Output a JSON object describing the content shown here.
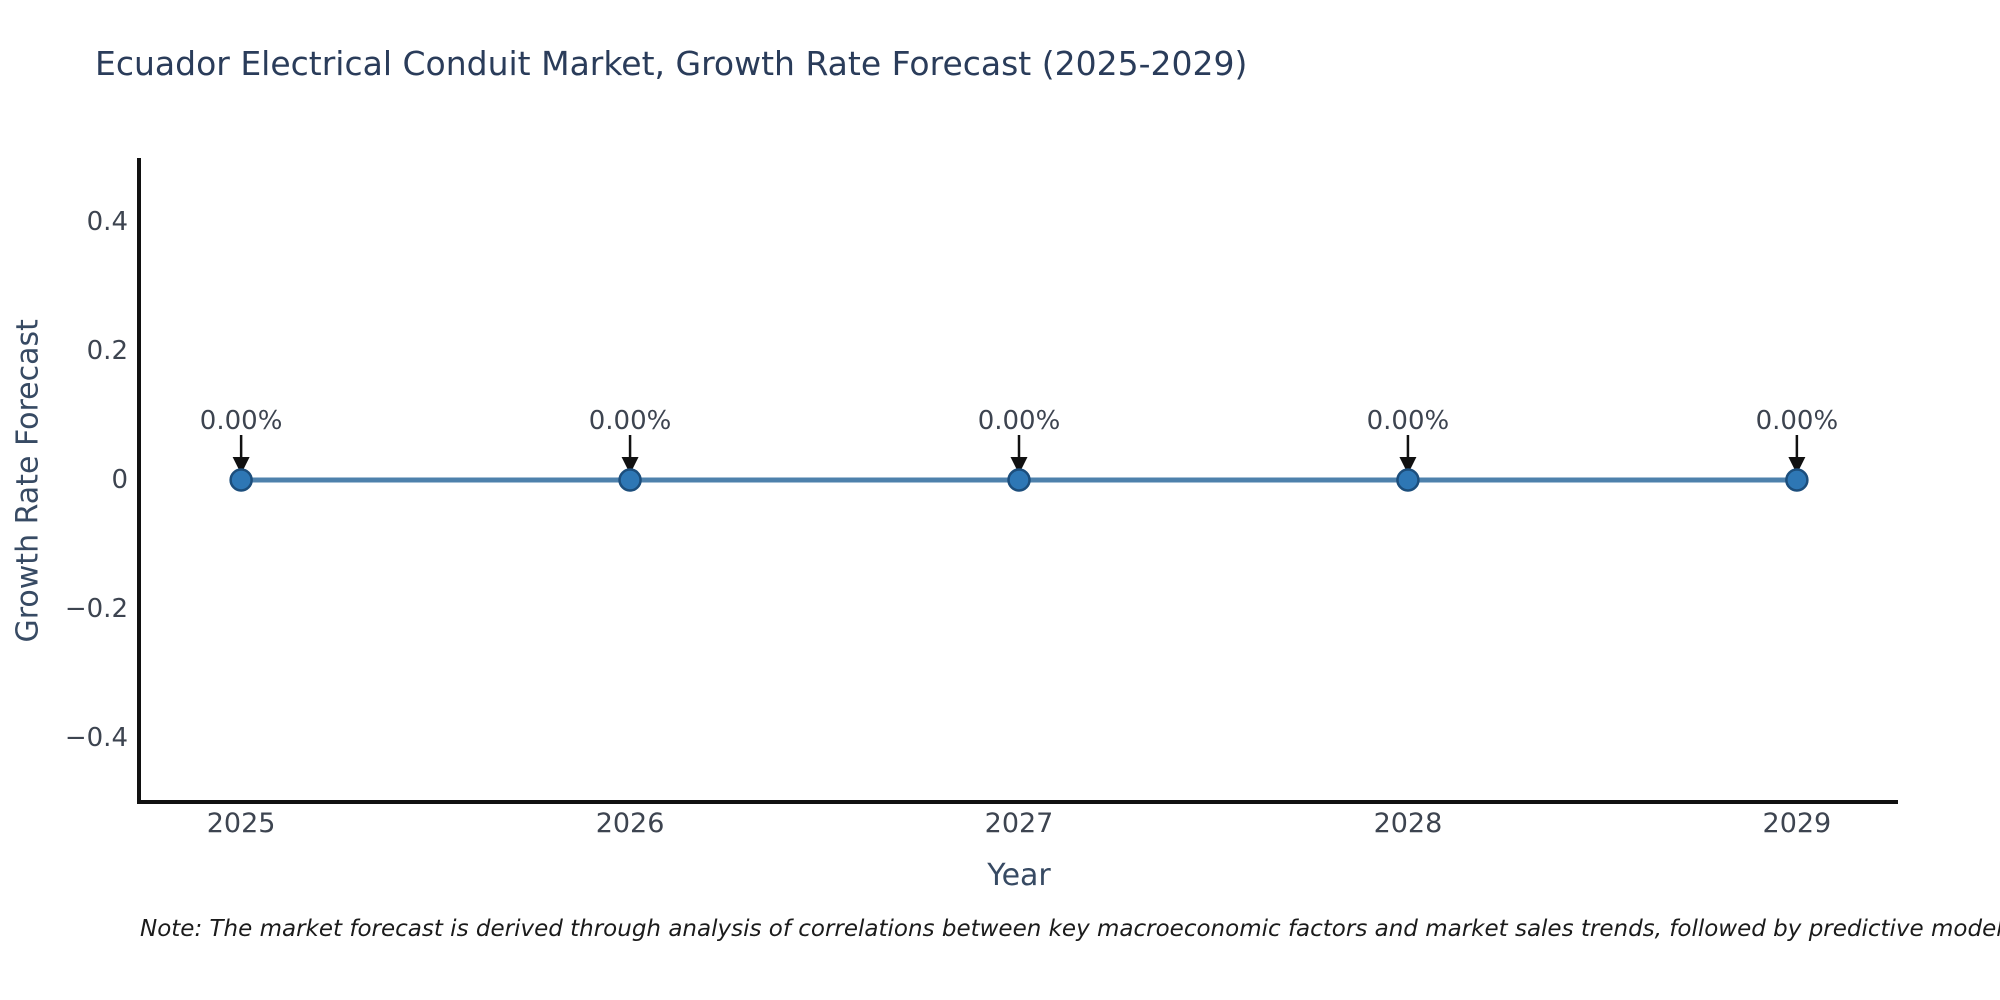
{
  "title": "Ecuador Electrical Conduit Market, Growth Rate Forecast (2025-2029)",
  "note": "Note: The market forecast is derived through analysis of correlations between key macroeconomic factors and market sales trends, followed by predictive modeling to project future sa",
  "chart_data": {
    "type": "line",
    "title": "Ecuador Electrical Conduit Market, Growth Rate Forecast (2025-2029)",
    "xlabel": "Year",
    "ylabel": "Growth Rate Forecast",
    "x": [
      2025,
      2026,
      2027,
      2028,
      2029
    ],
    "categories": [
      "2025",
      "2026",
      "2027",
      "2028",
      "2029"
    ],
    "series": [
      {
        "name": "Growth Rate Forecast",
        "values": [
          0,
          0,
          0,
          0,
          0
        ]
      }
    ],
    "data_labels": [
      "0.00%",
      "0.00%",
      "0.00%",
      "0.00%",
      "0.00%"
    ],
    "y_ticks": [
      0.4,
      0.2,
      0,
      -0.2,
      -0.4
    ],
    "y_tick_labels": [
      "0.4",
      "0.2",
      "0",
      "−0.2",
      "−0.4"
    ],
    "xlim": [
      2024.74,
      2029.26
    ],
    "ylim": [
      -0.5,
      0.5
    ],
    "grid": false,
    "legend": "none",
    "annotation_arrows": "down-to-point",
    "colors": {
      "line": "#4e81ac",
      "marker_fill": "#2e77b5",
      "marker_edge": "#1c4e7c",
      "arrow": "#111111",
      "axis": "#111111",
      "title_text": "#2a3c5a",
      "axis_title_text": "#374a63",
      "tick_text": "#3d4450",
      "annotation_text": "#3d4450",
      "note_text": "#1b1b1b",
      "background": "#ffffff"
    }
  }
}
